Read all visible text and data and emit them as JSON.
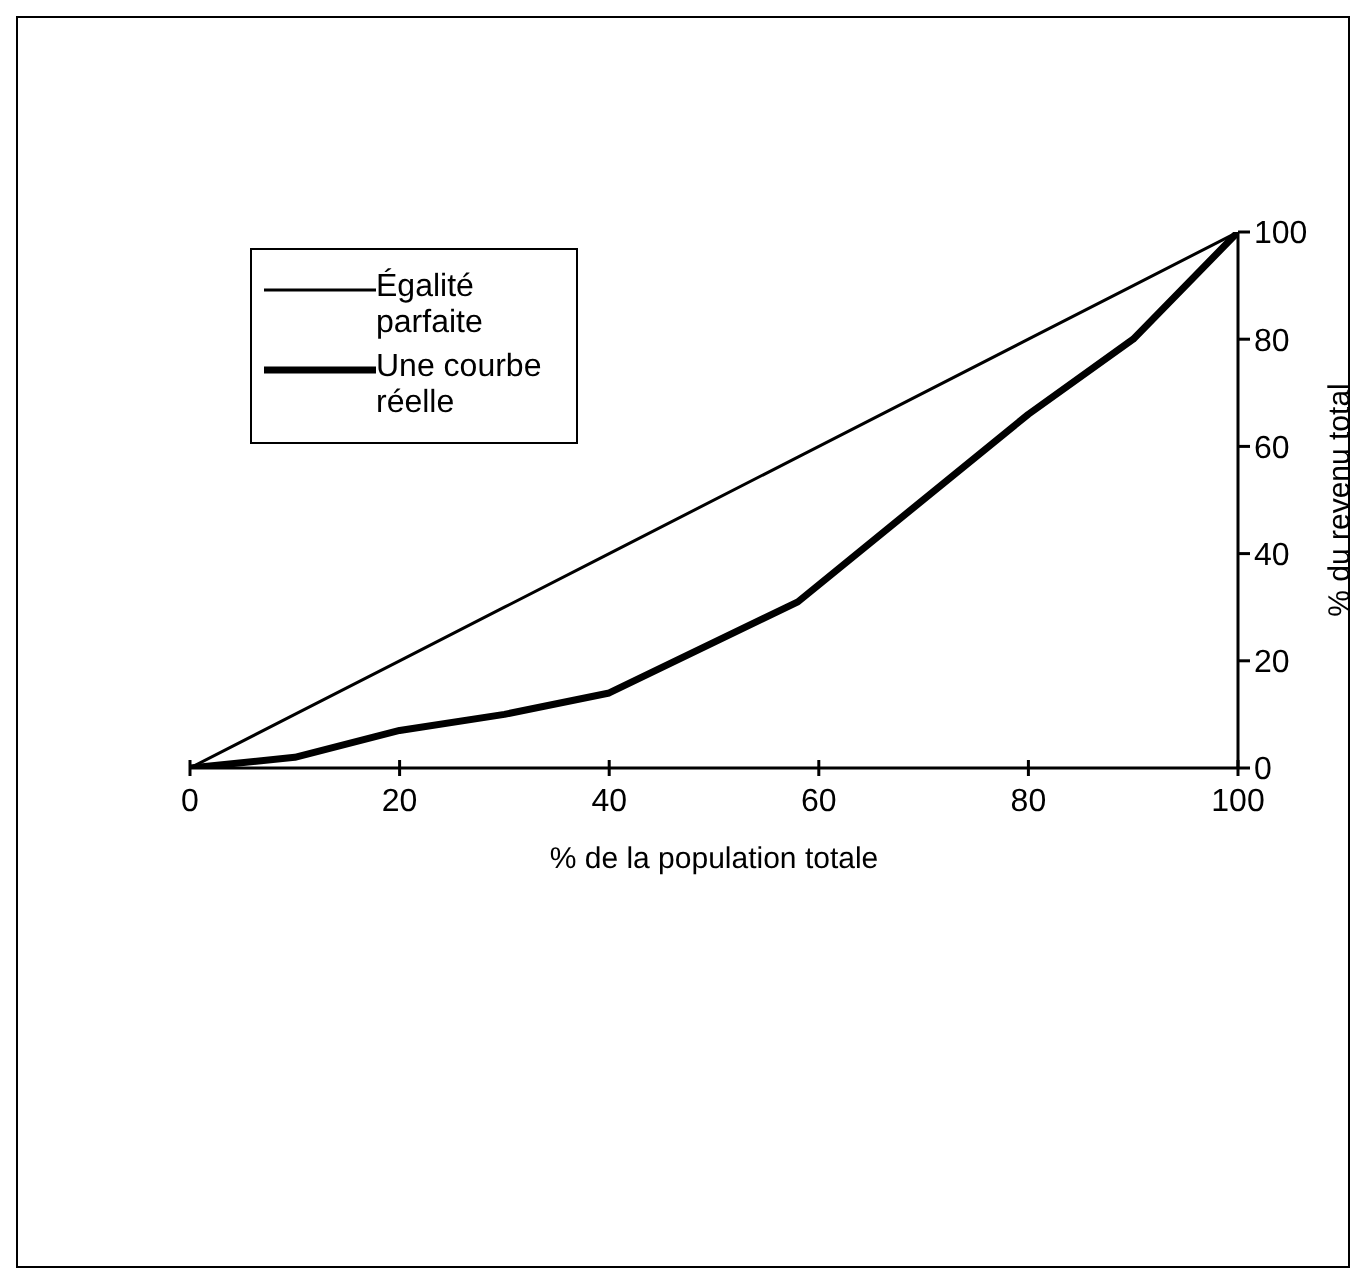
{
  "chart_data": {
    "type": "line",
    "xlabel": "% de la population totale",
    "ylabel": "% du revenu total",
    "x": [
      0,
      10,
      20,
      30,
      40,
      58,
      80,
      90,
      100
    ],
    "series": [
      {
        "name": "Égalité parfaite",
        "color": "#000000",
        "values": [
          0,
          10,
          20,
          30,
          40,
          58,
          80,
          90,
          100
        ]
      },
      {
        "name": "Une courbe réelle",
        "color": "#000000",
        "values": [
          0,
          2,
          7,
          10,
          14,
          31,
          66,
          80,
          100
        ]
      }
    ],
    "xlim": [
      0,
      100
    ],
    "xticks": [
      0,
      20,
      40,
      60,
      80,
      100
    ],
    "ylim": [
      0,
      100
    ],
    "yticks": [
      0,
      20,
      40,
      60,
      80,
      100
    ],
    "legend": "top left",
    "grid": false,
    "marker": "none",
    "line_style": "solid"
  }
}
